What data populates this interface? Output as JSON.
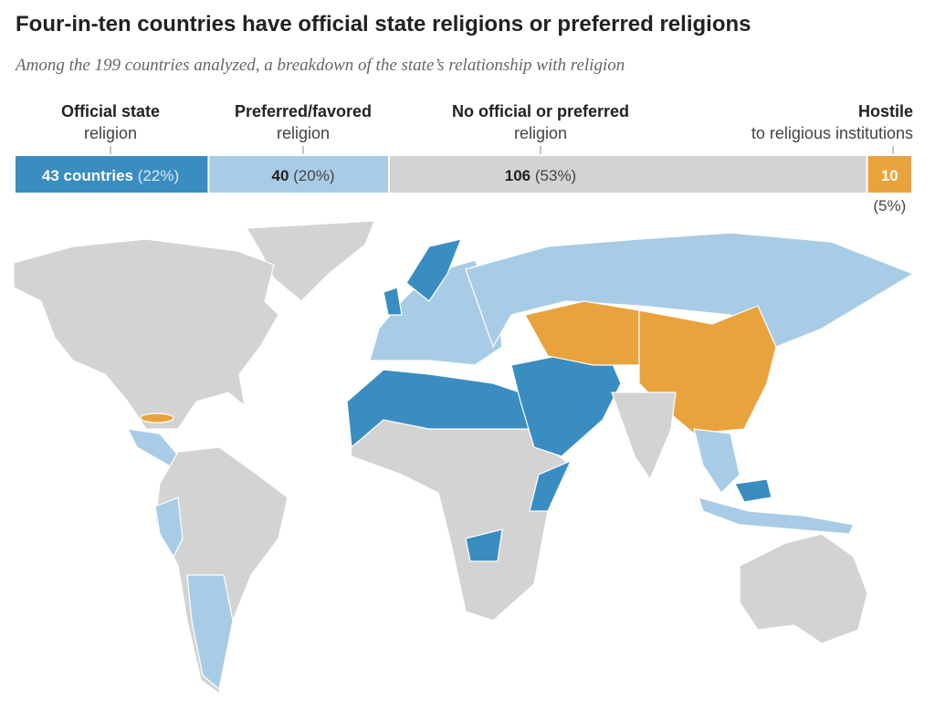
{
  "chart_data": {
    "type": "stacked-bar",
    "title": "Four-in-ten countries have official state religions or preferred religions",
    "subtitle": "Among the 199 countries analyzed, a breakdown of the state’s relationship with religion",
    "segments": [
      {
        "name": "Official state",
        "detail": "religion",
        "color": "#3a8dc1",
        "count": 43,
        "count_label": "43 countries",
        "percent": 22,
        "percent_label": "(22%)"
      },
      {
        "name": "Preferred/favored",
        "detail": "religion",
        "color": "#a9cce6",
        "count": 40,
        "percent": 20,
        "percent_label": "(20%)"
      },
      {
        "name": "No official or preferred",
        "detail": "religion",
        "color": "#d3d3d3",
        "count": 106,
        "percent": 53,
        "percent_label": "(53%)"
      },
      {
        "name": "Hostile",
        "detail": "to religious institutions",
        "color": "#e8a33d",
        "count": 10,
        "percent": 5,
        "percent_label": "(5%)"
      }
    ]
  }
}
